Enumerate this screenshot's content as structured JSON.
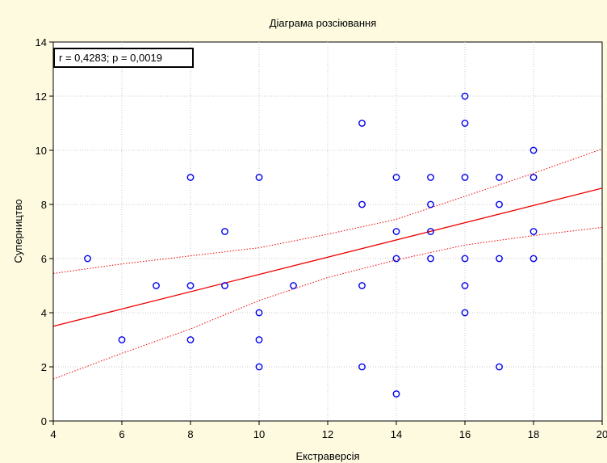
{
  "chart_data": {
    "type": "scatter",
    "title": "Діаграма розсіювання",
    "xlabel": "Екстраверсія",
    "ylabel": "Суперництво",
    "xlim": [
      4,
      20
    ],
    "ylim": [
      0,
      14
    ],
    "xticks": [
      4,
      6,
      8,
      10,
      12,
      14,
      16,
      18,
      20
    ],
    "yticks": [
      0,
      2,
      4,
      6,
      8,
      10,
      12,
      14
    ],
    "grid": true,
    "annotation": "r = 0,4283; p = 0,0019",
    "colors": {
      "points": "#0000ee",
      "fit": "#ee0000",
      "background": "#fdfae0",
      "plot_background": "#ffffff"
    },
    "points": [
      {
        "x": 5,
        "y": 6
      },
      {
        "x": 6,
        "y": 3
      },
      {
        "x": 7,
        "y": 5
      },
      {
        "x": 8,
        "y": 9
      },
      {
        "x": 8,
        "y": 5
      },
      {
        "x": 8,
        "y": 3
      },
      {
        "x": 9,
        "y": 7
      },
      {
        "x": 9,
        "y": 5
      },
      {
        "x": 10,
        "y": 9
      },
      {
        "x": 10,
        "y": 4
      },
      {
        "x": 10,
        "y": 3
      },
      {
        "x": 10,
        "y": 2
      },
      {
        "x": 11,
        "y": 5
      },
      {
        "x": 13,
        "y": 11
      },
      {
        "x": 13,
        "y": 8
      },
      {
        "x": 13,
        "y": 5
      },
      {
        "x": 13,
        "y": 2
      },
      {
        "x": 14,
        "y": 9
      },
      {
        "x": 14,
        "y": 7
      },
      {
        "x": 14,
        "y": 6
      },
      {
        "x": 14,
        "y": 1
      },
      {
        "x": 15,
        "y": 9
      },
      {
        "x": 15,
        "y": 8
      },
      {
        "x": 15,
        "y": 7
      },
      {
        "x": 15,
        "y": 6
      },
      {
        "x": 16,
        "y": 12
      },
      {
        "x": 16,
        "y": 11
      },
      {
        "x": 16,
        "y": 9
      },
      {
        "x": 16,
        "y": 6
      },
      {
        "x": 16,
        "y": 5
      },
      {
        "x": 16,
        "y": 4
      },
      {
        "x": 17,
        "y": 9
      },
      {
        "x": 17,
        "y": 8
      },
      {
        "x": 17,
        "y": 6
      },
      {
        "x": 17,
        "y": 2
      },
      {
        "x": 18,
        "y": 10
      },
      {
        "x": 18,
        "y": 9
      },
      {
        "x": 18,
        "y": 7
      },
      {
        "x": 18,
        "y": 6
      }
    ],
    "fit_line": [
      {
        "x": 4,
        "y": 3.5
      },
      {
        "x": 20,
        "y": 8.6
      }
    ],
    "confidence_upper": [
      {
        "x": 4,
        "y": 5.45
      },
      {
        "x": 6,
        "y": 5.8
      },
      {
        "x": 8,
        "y": 6.1
      },
      {
        "x": 10,
        "y": 6.4
      },
      {
        "x": 12,
        "y": 6.9
      },
      {
        "x": 14,
        "y": 7.45
      },
      {
        "x": 16,
        "y": 8.3
      },
      {
        "x": 18,
        "y": 9.15
      },
      {
        "x": 20,
        "y": 10.05
      }
    ],
    "confidence_lower": [
      {
        "x": 4,
        "y": 1.55
      },
      {
        "x": 6,
        "y": 2.5
      },
      {
        "x": 8,
        "y": 3.4
      },
      {
        "x": 10,
        "y": 4.45
      },
      {
        "x": 12,
        "y": 5.3
      },
      {
        "x": 14,
        "y": 5.95
      },
      {
        "x": 16,
        "y": 6.5
      },
      {
        "x": 18,
        "y": 6.85
      },
      {
        "x": 20,
        "y": 7.15
      }
    ]
  }
}
